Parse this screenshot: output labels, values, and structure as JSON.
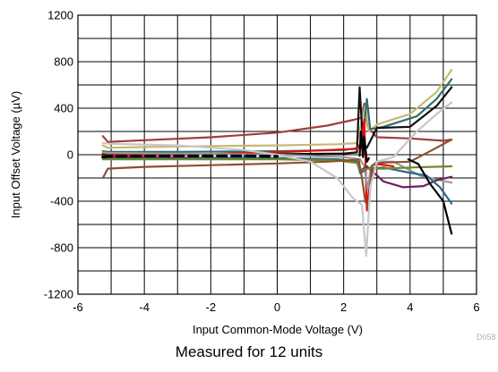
{
  "chart_data": {
    "type": "line",
    "xlabel": "Input Common-Mode Voltage (V)",
    "ylabel": "Input Offset Voltage (µV)",
    "xlim": [
      -6,
      6
    ],
    "ylim": [
      -1200,
      1200
    ],
    "x_ticks": [
      -6,
      -4,
      -2,
      0,
      2,
      4,
      6
    ],
    "y_ticks": [
      -1200,
      -800,
      -400,
      0,
      400,
      800,
      1200
    ],
    "x_tick_labels": [
      "-6",
      "-4",
      "-2",
      "0",
      "2",
      "4",
      "6"
    ],
    "y_tick_labels": [
      "-1200",
      "-800",
      "-400",
      "0",
      "400",
      "800",
      "1200"
    ],
    "x_minor_step": 1,
    "y_minor_step": 200,
    "grid": true,
    "figure_id": "D058",
    "series": [
      {
        "color": "#a23c3c",
        "points": [
          [
            -5.25,
            160
          ],
          [
            -5.1,
            110
          ],
          [
            -4,
            125
          ],
          [
            -2,
            150
          ],
          [
            0,
            190
          ],
          [
            1.5,
            250
          ],
          [
            2.3,
            300
          ],
          [
            2.55,
            320
          ],
          [
            2.62,
            440
          ],
          [
            2.72,
            240
          ],
          [
            3.0,
            150
          ],
          [
            4.0,
            140
          ],
          [
            5.0,
            120
          ],
          [
            5.25,
            130
          ]
        ]
      },
      {
        "color": "#c8b878",
        "points": [
          [
            -5.25,
            80
          ],
          [
            -5.1,
            60
          ],
          [
            -4,
            65
          ],
          [
            -2,
            75
          ],
          [
            0,
            80
          ],
          [
            1.8,
            90
          ],
          [
            2.4,
            100
          ],
          [
            2.55,
            300
          ],
          [
            2.65,
            420
          ],
          [
            2.75,
            200
          ],
          [
            3.0,
            260
          ],
          [
            4.0,
            350
          ],
          [
            4.8,
            540
          ],
          [
            5.25,
            730
          ]
        ]
      },
      {
        "color": "#2f6e6e",
        "points": [
          [
            -5.25,
            30
          ],
          [
            -5.1,
            25
          ],
          [
            -3,
            25
          ],
          [
            0,
            30
          ],
          [
            2.0,
            40
          ],
          [
            2.5,
            60
          ],
          [
            2.6,
            200
          ],
          [
            2.7,
            480
          ],
          [
            2.8,
            220
          ],
          [
            3.2,
            240
          ],
          [
            4.2,
            330
          ],
          [
            4.8,
            480
          ],
          [
            5.25,
            650
          ]
        ]
      },
      {
        "color": "#111111",
        "points": [
          [
            -5.25,
            10
          ],
          [
            -5.1,
            10
          ],
          [
            -3,
            5
          ],
          [
            0,
            5
          ],
          [
            2.0,
            10
          ],
          [
            2.4,
            20
          ],
          [
            2.48,
            580
          ],
          [
            2.58,
            100
          ],
          [
            2.7,
            60
          ],
          [
            3.0,
            230
          ],
          [
            4.0,
            240
          ],
          [
            4.8,
            420
          ],
          [
            5.25,
            580
          ]
        ]
      },
      {
        "color": "#e01010",
        "points": [
          [
            -5.25,
            -5
          ],
          [
            -5.1,
            -5
          ],
          [
            -3,
            0
          ],
          [
            0,
            20
          ],
          [
            1.5,
            40
          ],
          [
            2.4,
            50
          ],
          [
            2.52,
            100
          ],
          [
            2.62,
            300
          ],
          [
            2.7,
            -480
          ],
          [
            2.8,
            -200
          ],
          [
            3.0,
            -80
          ],
          [
            3.5,
            -100
          ]
        ]
      },
      {
        "color": "#9a9a9a",
        "points": [
          [
            -5.25,
            20
          ],
          [
            -5.1,
            15
          ],
          [
            -3,
            10
          ],
          [
            0,
            0
          ],
          [
            2.0,
            -20
          ],
          [
            2.5,
            -40
          ],
          [
            2.62,
            -100
          ],
          [
            2.72,
            -300
          ],
          [
            2.82,
            -100
          ],
          [
            3.0,
            -60
          ],
          [
            3.5,
            -60
          ],
          [
            4.3,
            -180
          ],
          [
            4.9,
            -220
          ],
          [
            5.25,
            -240
          ]
        ]
      },
      {
        "color": "#6c2060",
        "points": [
          [
            -5.25,
            -15
          ],
          [
            -5.1,
            -20
          ],
          [
            -3,
            -25
          ],
          [
            0,
            -30
          ],
          [
            1.8,
            -40
          ],
          [
            2.4,
            -60
          ],
          [
            2.5,
            -140
          ],
          [
            2.7,
            -100
          ],
          [
            3.2,
            -230
          ],
          [
            3.8,
            -280
          ],
          [
            4.4,
            -270
          ],
          [
            4.8,
            -220
          ],
          [
            5.25,
            -190
          ]
        ]
      },
      {
        "color": "#2a6a8a",
        "points": [
          [
            -5.25,
            -30
          ],
          [
            -5.1,
            -35
          ],
          [
            -3,
            -35
          ],
          [
            0,
            -30
          ],
          [
            1.8,
            -40
          ],
          [
            2.4,
            -60
          ],
          [
            2.5,
            -160
          ],
          [
            2.7,
            -120
          ],
          [
            3.2,
            -110
          ],
          [
            3.9,
            -150
          ],
          [
            4.5,
            -180
          ],
          [
            4.9,
            -280
          ],
          [
            5.25,
            -420
          ]
        ]
      },
      {
        "color": "#6a8a2a",
        "points": [
          [
            -5.25,
            -40
          ],
          [
            -5.1,
            -40
          ],
          [
            -3,
            -40
          ],
          [
            0,
            -40
          ],
          [
            1.8,
            -50
          ],
          [
            2.4,
            -70
          ],
          [
            2.5,
            -140
          ],
          [
            2.7,
            -120
          ],
          [
            3.2,
            -120
          ],
          [
            4.0,
            -110
          ],
          [
            5.25,
            -100
          ]
        ]
      },
      {
        "color": "#8c5030",
        "points": [
          [
            -5.25,
            -200
          ],
          [
            -5.1,
            -120
          ],
          [
            -4,
            -105
          ],
          [
            -2,
            -90
          ],
          [
            0,
            -75
          ],
          [
            1.5,
            -60
          ],
          [
            2.3,
            -45
          ],
          [
            2.45,
            -40
          ],
          [
            2.55,
            -200
          ],
          [
            2.65,
            -400
          ],
          [
            2.75,
            -460
          ],
          [
            2.85,
            -100
          ],
          [
            3.0,
            -70
          ],
          [
            4.0,
            -60
          ],
          [
            4.8,
            60
          ],
          [
            5.25,
            130
          ]
        ]
      },
      {
        "color": "#c8c8c8",
        "points": [
          [
            -5.25,
            100
          ],
          [
            -5.1,
            95
          ],
          [
            -3,
            80
          ],
          [
            -1,
            40
          ],
          [
            0,
            0
          ],
          [
            1.0,
            -60
          ],
          [
            1.8,
            -200
          ],
          [
            2.3,
            -380
          ],
          [
            2.55,
            -430
          ],
          [
            2.68,
            -870
          ],
          [
            2.8,
            -280
          ],
          [
            3.0,
            -60
          ],
          [
            3.5,
            -20
          ],
          [
            4.2,
            200
          ],
          [
            4.8,
            350
          ],
          [
            5.25,
            450
          ]
        ]
      },
      {
        "color": "#000000",
        "dashed": true,
        "points": [
          [
            -5.25,
            -20
          ],
          [
            -5.1,
            -15
          ],
          [
            -3,
            -10
          ],
          [
            -1,
            -10
          ],
          [
            0,
            -15
          ]
        ]
      },
      {
        "color": "#000000",
        "points": [
          [
            2.48,
            -10
          ],
          [
            2.52,
            200
          ],
          [
            2.58,
            -20
          ],
          [
            2.62,
            150
          ],
          [
            2.7,
            -60
          ],
          [
            2.76,
            -30
          ]
        ]
      },
      {
        "color": "#000000",
        "points": [
          [
            3.95,
            -40
          ],
          [
            4.25,
            -80
          ],
          [
            4.6,
            -250
          ],
          [
            5.0,
            -400
          ],
          [
            5.25,
            -680
          ]
        ]
      }
    ]
  },
  "caption": "Measured for 12 units"
}
